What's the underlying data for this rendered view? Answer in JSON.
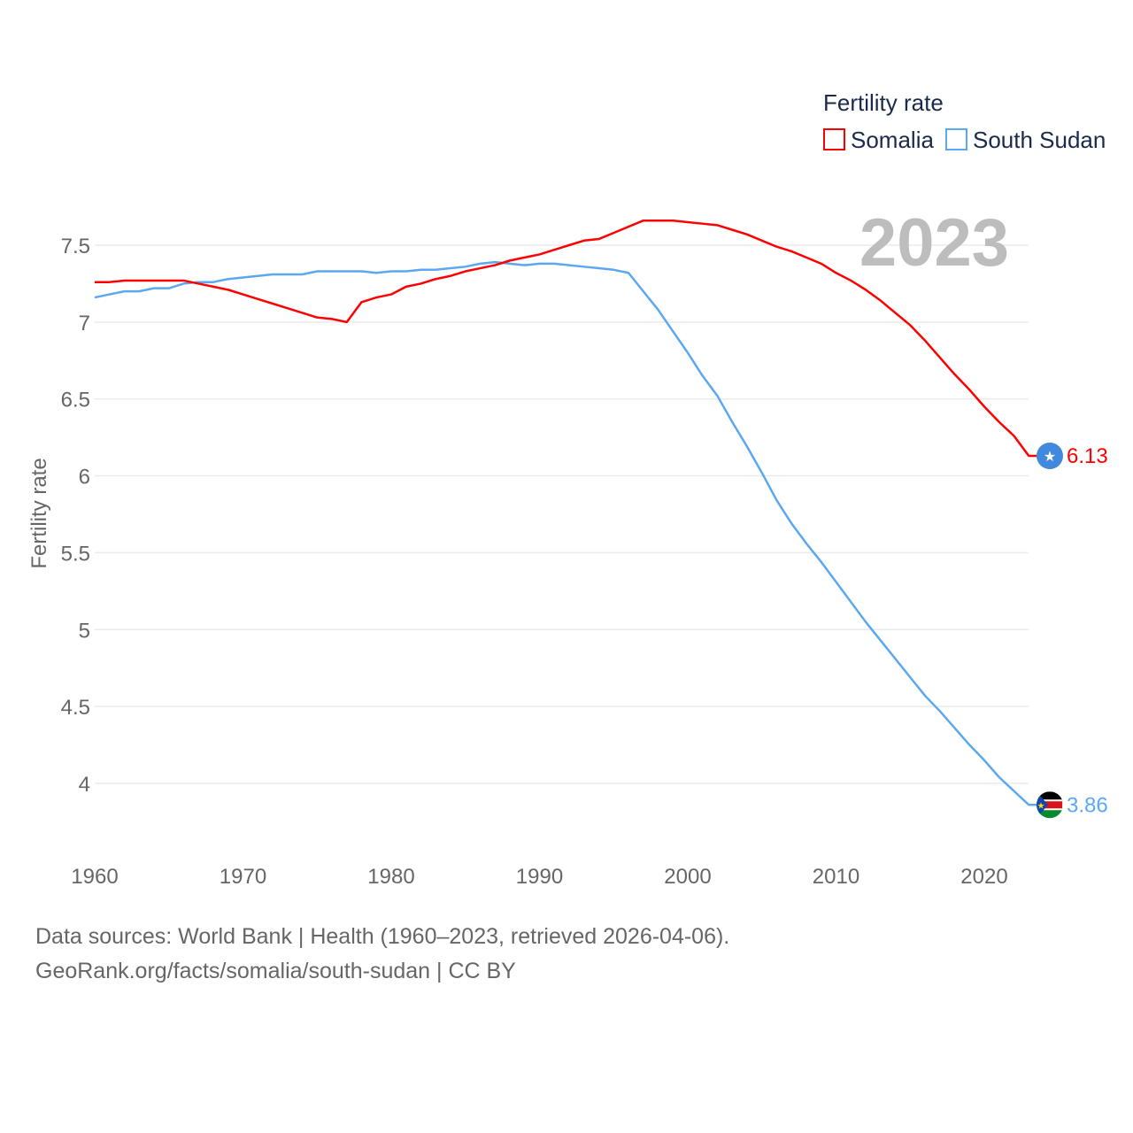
{
  "chart_data": {
    "type": "line",
    "title": "",
    "legend_title": "Fertility rate",
    "legend_placement": "top-right",
    "ylabel": "Fertility rate",
    "xlabel": "",
    "year_label": "2023",
    "xlim": [
      1960,
      2023
    ],
    "ylim": [
      3.7,
      7.85
    ],
    "x_ticks": [
      "1960",
      "1970",
      "1980",
      "1990",
      "2000",
      "2010",
      "2020"
    ],
    "y_ticks": [
      "4",
      "4.5",
      "5",
      "5.5",
      "6",
      "6.5",
      "7",
      "7.5"
    ],
    "grid": true,
    "x": [
      1960,
      1961,
      1962,
      1963,
      1964,
      1965,
      1966,
      1967,
      1968,
      1969,
      1970,
      1971,
      1972,
      1973,
      1974,
      1975,
      1976,
      1977,
      1978,
      1979,
      1980,
      1981,
      1982,
      1983,
      1984,
      1985,
      1986,
      1987,
      1988,
      1989,
      1990,
      1991,
      1992,
      1993,
      1994,
      1995,
      1996,
      1997,
      1998,
      1999,
      2000,
      2001,
      2002,
      2003,
      2004,
      2005,
      2006,
      2007,
      2008,
      2009,
      2010,
      2011,
      2012,
      2013,
      2014,
      2015,
      2016,
      2017,
      2018,
      2019,
      2020,
      2021,
      2022,
      2023
    ],
    "series": [
      {
        "name": "Somalia",
        "color": "#ff0000",
        "end_label": "6.13",
        "flag_color": "#4189dd",
        "values": [
          7.26,
          7.26,
          7.27,
          7.27,
          7.27,
          7.27,
          7.27,
          7.25,
          7.23,
          7.21,
          7.18,
          7.15,
          7.12,
          7.09,
          7.06,
          7.03,
          7.02,
          7.0,
          7.13,
          7.16,
          7.18,
          7.23,
          7.25,
          7.28,
          7.3,
          7.33,
          7.35,
          7.37,
          7.4,
          7.42,
          7.44,
          7.47,
          7.5,
          7.53,
          7.54,
          7.58,
          7.62,
          7.66,
          7.66,
          7.66,
          7.65,
          7.64,
          7.63,
          7.6,
          7.57,
          7.53,
          7.49,
          7.46,
          7.42,
          7.38,
          7.32,
          7.27,
          7.21,
          7.14,
          7.06,
          6.98,
          6.88,
          6.77,
          6.66,
          6.56,
          6.45,
          6.35,
          6.26,
          6.13
        ]
      },
      {
        "name": "South Sudan",
        "color": "#5ba8f0",
        "end_label": "3.86",
        "values": [
          7.16,
          7.18,
          7.2,
          7.2,
          7.22,
          7.22,
          7.25,
          7.26,
          7.26,
          7.28,
          7.29,
          7.3,
          7.31,
          7.31,
          7.31,
          7.33,
          7.33,
          7.33,
          7.33,
          7.32,
          7.33,
          7.33,
          7.34,
          7.34,
          7.35,
          7.36,
          7.38,
          7.39,
          7.38,
          7.37,
          7.38,
          7.38,
          7.37,
          7.36,
          7.35,
          7.34,
          7.32,
          7.2,
          7.08,
          6.94,
          6.8,
          6.65,
          6.52,
          6.35,
          6.19,
          6.02,
          5.84,
          5.69,
          5.56,
          5.44,
          5.31,
          5.18,
          5.05,
          4.93,
          4.81,
          4.69,
          4.57,
          4.47,
          4.36,
          4.25,
          4.15,
          4.04,
          3.95,
          3.86
        ]
      }
    ]
  },
  "footer": {
    "line1": "Data sources: World Bank | Health (1960–2023, retrieved 2026-04-06).",
    "line2": "GeoRank.org/facts/somalia/south-sudan | CC BY"
  }
}
